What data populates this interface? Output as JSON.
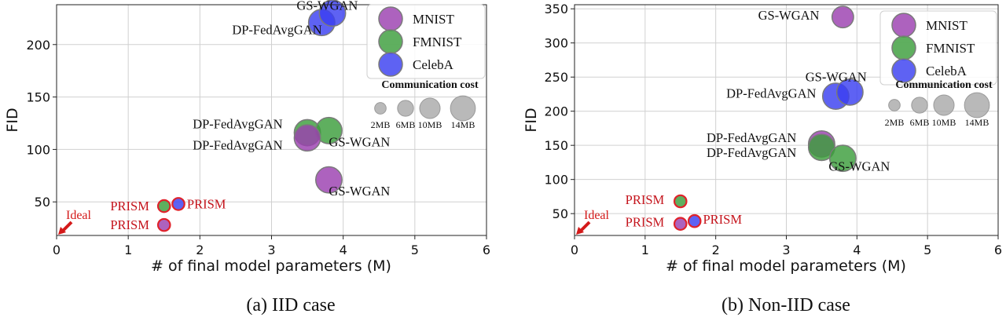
{
  "colors": {
    "mnist": "#9b3fb0",
    "fmnist": "#3c9e3c",
    "celeba": "#3b3ff0",
    "cost": "#a8a8a8",
    "prism_edge": "#e0222a",
    "label_red": "#c4121a"
  },
  "chart_data": [
    {
      "type": "scatter",
      "id": "iid",
      "caption": "(a) IID case",
      "xlabel": "# of final model parameters (M)",
      "ylabel": "FID",
      "xlim": [
        0,
        6
      ],
      "ylim": [
        18,
        238
      ],
      "xticks": [
        0,
        1,
        2,
        3,
        4,
        5,
        6
      ],
      "yticks": [
        50,
        100,
        150,
        200
      ],
      "grid": true,
      "ideal_label": "Ideal",
      "legend": {
        "location": "top-right",
        "entries": [
          {
            "name": "MNIST",
            "color_key": "mnist"
          },
          {
            "name": "FMNIST",
            "color_key": "fmnist"
          },
          {
            "name": "CelebA",
            "color_key": "celeba"
          }
        ],
        "cost_title": "Communication cost",
        "cost_sizes": [
          {
            "label": "2MB",
            "mb": 2
          },
          {
            "label": "6MB",
            "mb": 6
          },
          {
            "label": "10MB",
            "mb": 10
          },
          {
            "label": "14MB",
            "mb": 14
          }
        ]
      },
      "points": [
        {
          "dataset": "celeba",
          "method": "DP-FedAvgGAN",
          "x": 3.7,
          "y": 221,
          "cost_mb": 14
        },
        {
          "dataset": "celeba",
          "method": "GS-WGAN",
          "x": 3.85,
          "y": 230,
          "cost_mb": 14
        },
        {
          "dataset": "fmnist",
          "method": "DP-FedAvgGAN",
          "x": 3.5,
          "y": 116,
          "cost_mb": 14
        },
        {
          "dataset": "fmnist",
          "method": "GS-WGAN",
          "x": 3.8,
          "y": 118,
          "cost_mb": 14
        },
        {
          "dataset": "mnist",
          "method": "DP-FedAvgGAN",
          "x": 3.5,
          "y": 111,
          "cost_mb": 14
        },
        {
          "dataset": "mnist",
          "method": "GS-WGAN",
          "x": 3.8,
          "y": 71,
          "cost_mb": 14
        },
        {
          "dataset": "fmnist",
          "method": "PRISM",
          "x": 1.5,
          "y": 46,
          "cost_mb": 2,
          "prism": true
        },
        {
          "dataset": "celeba",
          "method": "PRISM",
          "x": 1.7,
          "y": 48,
          "cost_mb": 2,
          "prism": true
        },
        {
          "dataset": "mnist",
          "method": "PRISM",
          "x": 1.5,
          "y": 28,
          "cost_mb": 2,
          "prism": true
        }
      ],
      "labels": [
        {
          "text": "GS-WGAN",
          "x": 3.35,
          "y": 233,
          "red": false
        },
        {
          "text": "DP-FedAvgGAN",
          "x": 2.45,
          "y": 210,
          "red": false
        },
        {
          "text": "DP-FedAvgGAN",
          "x": 1.9,
          "y": 120,
          "red": false
        },
        {
          "text": "DP-FedAvgGAN",
          "x": 1.9,
          "y": 100,
          "red": false
        },
        {
          "text": "GS-WGAN",
          "x": 3.8,
          "y": 103,
          "red": false
        },
        {
          "text": "GS-WGAN",
          "x": 3.8,
          "y": 56,
          "red": false
        },
        {
          "text": "PRISM",
          "x": 0.75,
          "y": 42,
          "red": true
        },
        {
          "text": "PRISM",
          "x": 1.82,
          "y": 44,
          "red": true
        },
        {
          "text": "PRISM",
          "x": 0.75,
          "y": 24,
          "red": true
        }
      ]
    },
    {
      "type": "scatter",
      "id": "noniid",
      "caption": "(b) Non-IID case",
      "xlabel": "# of final model parameters (M)",
      "ylabel": "FID",
      "xlim": [
        0,
        6
      ],
      "ylim": [
        18,
        356
      ],
      "xticks": [
        0,
        1,
        2,
        3,
        4,
        5,
        6
      ],
      "yticks": [
        50,
        100,
        150,
        200,
        250,
        300,
        350
      ],
      "grid": true,
      "ideal_label": "Ideal",
      "legend": {
        "location": "top-right",
        "entries": [
          {
            "name": "MNIST",
            "color_key": "mnist"
          },
          {
            "name": "FMNIST",
            "color_key": "fmnist"
          },
          {
            "name": "CelebA",
            "color_key": "celeba"
          }
        ],
        "cost_title": "Communication cost",
        "cost_sizes": [
          {
            "label": "2MB",
            "mb": 2
          },
          {
            "label": "6MB",
            "mb": 6
          },
          {
            "label": "10MB",
            "mb": 10
          },
          {
            "label": "14MB",
            "mb": 14
          }
        ]
      },
      "points": [
        {
          "dataset": "mnist",
          "method": "GS-WGAN",
          "x": 3.8,
          "y": 338,
          "cost_mb": 10
        },
        {
          "dataset": "celeba",
          "method": "DP-FedAvgGAN",
          "x": 3.7,
          "y": 222,
          "cost_mb": 14
        },
        {
          "dataset": "celeba",
          "method": "GS-WGAN",
          "x": 3.9,
          "y": 228,
          "cost_mb": 14
        },
        {
          "dataset": "mnist",
          "method": "DP-FedAvgGAN",
          "x": 3.5,
          "y": 152,
          "cost_mb": 14
        },
        {
          "dataset": "fmnist",
          "method": "DP-FedAvgGAN",
          "x": 3.5,
          "y": 147,
          "cost_mb": 14
        },
        {
          "dataset": "fmnist",
          "method": "GS-WGAN",
          "x": 3.8,
          "y": 131,
          "cost_mb": 14
        },
        {
          "dataset": "fmnist",
          "method": "PRISM",
          "x": 1.5,
          "y": 68,
          "cost_mb": 2,
          "prism": true
        },
        {
          "dataset": "mnist",
          "method": "PRISM",
          "x": 1.5,
          "y": 35,
          "cost_mb": 2,
          "prism": true
        },
        {
          "dataset": "celeba",
          "method": "PRISM",
          "x": 1.7,
          "y": 39,
          "cost_mb": 2,
          "prism": true
        }
      ],
      "labels": [
        {
          "text": "GS-WGAN",
          "x": 2.6,
          "y": 334,
          "red": false
        },
        {
          "text": "GS-WGAN",
          "x": 3.27,
          "y": 244,
          "red": false
        },
        {
          "text": "DP-FedAvgGAN",
          "x": 2.15,
          "y": 220,
          "red": false
        },
        {
          "text": "DP-FedAvgGAN",
          "x": 1.87,
          "y": 155,
          "red": false
        },
        {
          "text": "DP-FedAvgGAN",
          "x": 1.87,
          "y": 133,
          "red": false
        },
        {
          "text": "GS-WGAN",
          "x": 3.6,
          "y": 113,
          "red": false
        },
        {
          "text": "PRISM",
          "x": 0.72,
          "y": 64,
          "red": true
        },
        {
          "text": "PRISM",
          "x": 0.72,
          "y": 31,
          "red": true
        },
        {
          "text": "PRISM",
          "x": 1.82,
          "y": 35,
          "red": true
        }
      ]
    }
  ]
}
